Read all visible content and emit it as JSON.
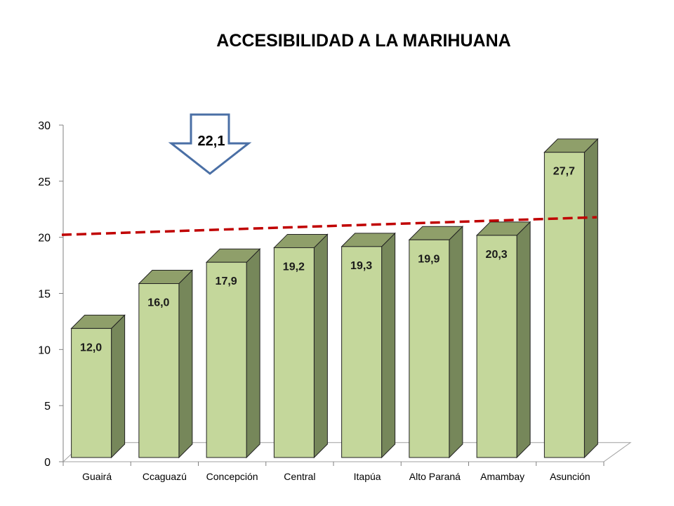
{
  "chart_data": {
    "type": "bar",
    "title": "ACCESIBILIDAD A LA MARIHUANA",
    "categories": [
      "Guairá",
      "Ccaguazú",
      "Concepción",
      "Central",
      "Itapúa",
      "Alto Paraná",
      "Amambay",
      "Asunción"
    ],
    "values": [
      12.0,
      16.0,
      17.9,
      19.2,
      19.3,
      19.9,
      20.3,
      27.7
    ],
    "value_labels": [
      "12,0",
      "16,0",
      "17,9",
      "19,2",
      "19,3",
      "19,9",
      "20,3",
      "27,7"
    ],
    "ylim": [
      0,
      30
    ],
    "yticks": [
      "0",
      "5",
      "10",
      "15",
      "20",
      "25",
      "30"
    ],
    "reference_line": {
      "value": 22.1,
      "label": "22,1",
      "color": "#c00000",
      "style": "dashed"
    },
    "colors": {
      "bar_front": "#c4d79b",
      "bar_side": "#76875a",
      "bar_top": "#8f9f6a",
      "arrow": "#4a6fa5"
    },
    "grid": false,
    "style": "3d-column"
  }
}
